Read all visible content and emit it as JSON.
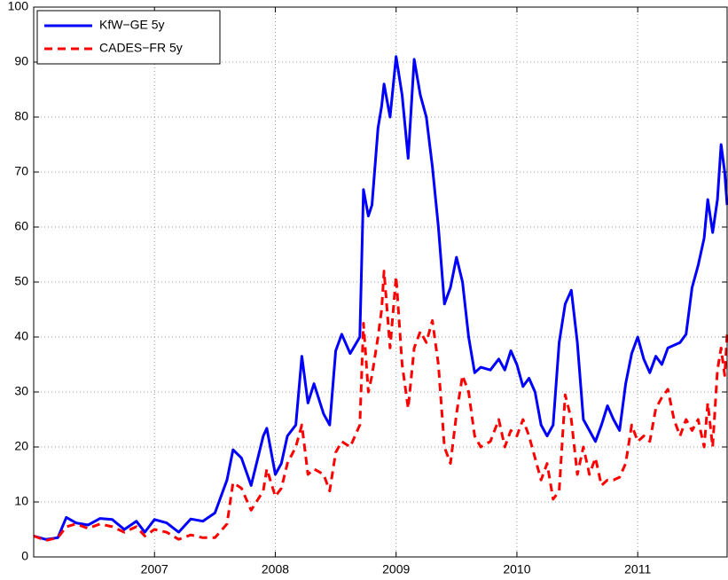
{
  "chart_data": {
    "type": "line",
    "x": [
      2006.0,
      2006.1,
      2006.2,
      2006.27,
      2006.35,
      2006.45,
      2006.55,
      2006.65,
      2006.75,
      2006.85,
      2006.92,
      2007.0,
      2007.1,
      2007.2,
      2007.3,
      2007.4,
      2007.5,
      2007.6,
      2007.65,
      2007.72,
      2007.8,
      2007.9,
      2007.93,
      2008.0,
      2008.05,
      2008.1,
      2008.17,
      2008.22,
      2008.27,
      2008.32,
      2008.4,
      2008.45,
      2008.5,
      2008.55,
      2008.62,
      2008.7,
      2008.73,
      2008.77,
      2008.8,
      2008.85,
      2008.88,
      2008.9,
      2008.95,
      2009.0,
      2009.05,
      2009.1,
      2009.15,
      2009.2,
      2009.25,
      2009.3,
      2009.35,
      2009.4,
      2009.45,
      2009.5,
      2009.55,
      2009.6,
      2009.65,
      2009.7,
      2009.78,
      2009.85,
      2009.9,
      2009.95,
      2010.0,
      2010.05,
      2010.1,
      2010.15,
      2010.2,
      2010.25,
      2010.3,
      2010.35,
      2010.4,
      2010.45,
      2010.5,
      2010.55,
      2010.6,
      2010.65,
      2010.7,
      2010.75,
      2010.8,
      2010.85,
      2010.9,
      2010.95,
      2011.0,
      2011.05,
      2011.1,
      2011.15,
      2011.2,
      2011.25,
      2011.3,
      2011.35,
      2011.4,
      2011.45,
      2011.5,
      2011.55,
      2011.58,
      2011.62,
      2011.66,
      2011.69,
      2011.72,
      2011.74
    ],
    "series": [
      {
        "name": "KfW−GE 5y",
        "color": "#0000ff",
        "dash": false,
        "values": [
          3.8,
          3.2,
          3.5,
          7.2,
          6.2,
          5.8,
          7.0,
          6.8,
          5.0,
          6.5,
          4.5,
          6.8,
          6.2,
          4.5,
          6.9,
          6.5,
          8.0,
          14.0,
          19.5,
          18.0,
          13.0,
          22.0,
          23.4,
          15.0,
          17.0,
          22.0,
          24.0,
          36.5,
          28.0,
          31.5,
          26.0,
          24.0,
          37.5,
          40.5,
          37.0,
          40.0,
          66.8,
          62.0,
          64.0,
          78.0,
          82.0,
          86.0,
          80.0,
          91.0,
          84.0,
          72.5,
          90.5,
          84.0,
          80.0,
          71.0,
          60.0,
          46.0,
          49.0,
          54.5,
          50.0,
          40.0,
          33.5,
          34.5,
          34.0,
          36.0,
          34.0,
          37.5,
          35.0,
          31.0,
          32.5,
          30.0,
          24.0,
          22.0,
          24.0,
          39.0,
          46.0,
          48.5,
          39.0,
          25.0,
          23.0,
          21.0,
          24.0,
          27.5,
          25.0,
          23.0,
          31.5,
          37.0,
          40.0,
          36.0,
          33.5,
          36.5,
          35.0,
          38.0,
          38.5,
          39.0,
          40.5,
          49.0,
          53.0,
          58.0,
          65.0,
          59.0,
          65.0,
          75.0,
          70.0,
          64.0
        ]
      },
      {
        "name": "CADES−FR 5y",
        "color": "#ff0000",
        "dash": true,
        "values": [
          3.8,
          3.0,
          3.5,
          5.5,
          6.0,
          5.2,
          6.0,
          5.5,
          4.5,
          5.5,
          3.8,
          5.0,
          4.5,
          3.2,
          4.0,
          3.5,
          3.5,
          6.0,
          13.5,
          12.5,
          8.5,
          12.0,
          16.0,
          11.0,
          12.5,
          17.0,
          20.0,
          24.0,
          15.0,
          16.0,
          15.0,
          12.0,
          19.0,
          21.0,
          20.0,
          24.0,
          42.5,
          30.0,
          33.0,
          40.0,
          45.0,
          52.0,
          38.0,
          51.0,
          35.0,
          27.0,
          38.0,
          41.0,
          39.0,
          43.0,
          35.0,
          20.0,
          17.0,
          26.0,
          33.0,
          30.0,
          22.0,
          20.0,
          21.0,
          25.0,
          20.0,
          23.0,
          22.0,
          25.0,
          22.0,
          18.0,
          14.0,
          17.0,
          10.5,
          12.0,
          29.5,
          25.0,
          15.0,
          20.0,
          15.0,
          18.0,
          13.0,
          14.0,
          14.0,
          14.5,
          17.0,
          24.0,
          21.0,
          22.0,
          21.0,
          27.0,
          29.0,
          30.5,
          25.0,
          22.0,
          25.0,
          23.0,
          25.0,
          20.0,
          28.0,
          20.0,
          34.0,
          38.0,
          33.0,
          40.5
        ]
      }
    ],
    "xlim": [
      2006.0,
      2011.74
    ],
    "xticks": [
      2007,
      2008,
      2009,
      2010,
      2011
    ],
    "ylim": [
      0,
      100
    ],
    "yticks": [
      0,
      10,
      20,
      30,
      40,
      50,
      60,
      70,
      80,
      90,
      100
    ],
    "grid": true,
    "legend": "upper-left"
  }
}
